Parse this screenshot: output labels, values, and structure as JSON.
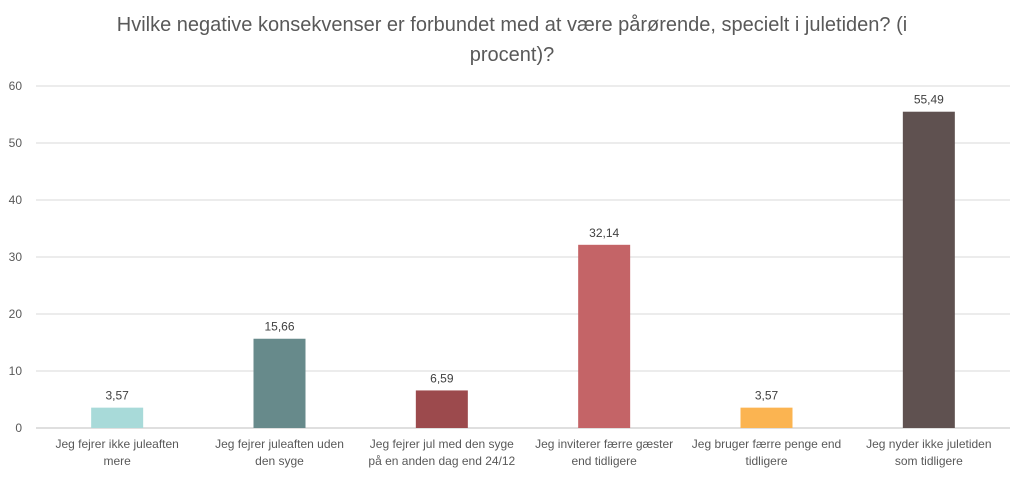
{
  "chart_data": {
    "type": "bar",
    "title": "Hvilke negative konsekvenser er forbundet med at være pårørende, specielt i juletiden? (i procent)?",
    "categories": [
      "Jeg fejrer ikke juleaften mere",
      "Jeg fejrer juleaften uden den syge",
      "Jeg fejrer jul med den syge på en anden dag end 24/12",
      "Jeg inviterer færre gæster end tidligere",
      "Jeg bruger færre penge end tidligere",
      "Jeg nyder ikke juletiden som tidligere"
    ],
    "values": [
      3.57,
      15.66,
      6.59,
      32.14,
      3.57,
      55.49
    ],
    "value_labels": [
      "3,57",
      "15,66",
      "6,59",
      "32,14",
      "3,57",
      "55,49"
    ],
    "colors": [
      "#a8dad9",
      "#678a8b",
      "#9c4a4d",
      "#c46467",
      "#fbb451",
      "#5f5150"
    ],
    "yticks": [
      0,
      10,
      20,
      30,
      40,
      50,
      60
    ],
    "ylim": [
      0,
      60
    ],
    "xlabel": "",
    "ylabel": "",
    "gridlines": true,
    "legend": "none"
  }
}
